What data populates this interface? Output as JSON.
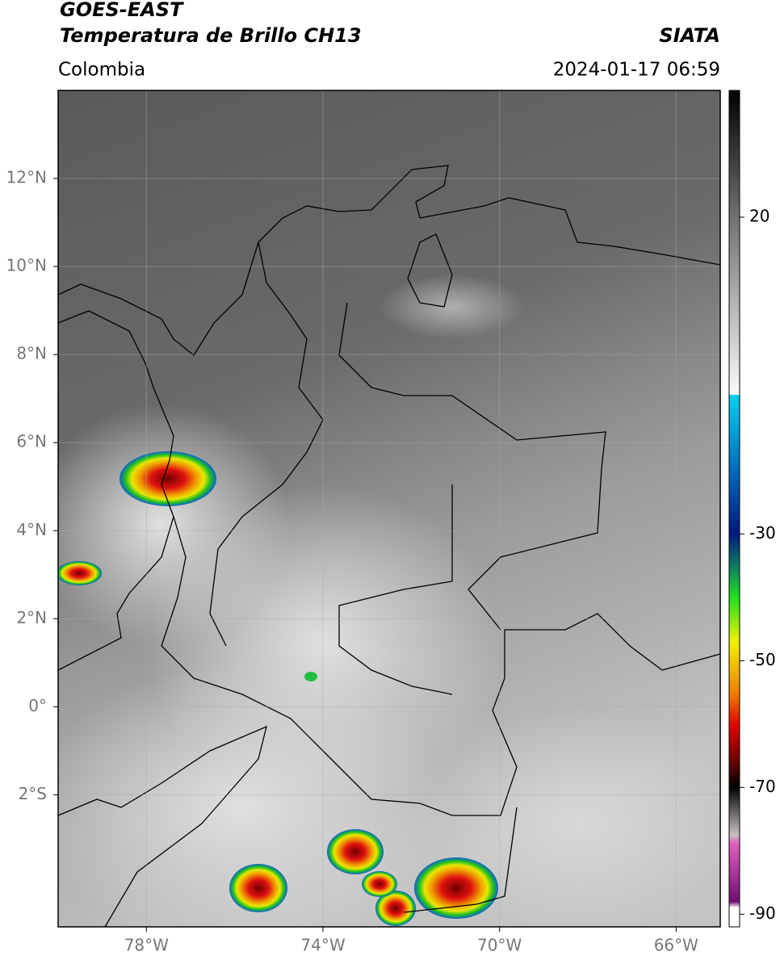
{
  "header": {
    "title": "GOES-EAST",
    "subtitle": "Temperatura de Brillo CH13",
    "source": "SIATA",
    "region": "Colombia",
    "datetime": "2024-01-17 06:59"
  },
  "map": {
    "type": "map",
    "xlim": [
      -80,
      -65
    ],
    "ylim": [
      -5,
      14
    ],
    "xticks": [
      {
        "value": -78,
        "label": "78°W"
      },
      {
        "value": -74,
        "label": "74°W"
      },
      {
        "value": -70,
        "label": "70°W"
      },
      {
        "value": -66,
        "label": "66°W"
      }
    ],
    "yticks": [
      {
        "value": 12,
        "label": "12°N"
      },
      {
        "value": 10,
        "label": "10°N"
      },
      {
        "value": 8,
        "label": "8°N"
      },
      {
        "value": 6,
        "label": "6°N"
      },
      {
        "value": 4,
        "label": "4°N"
      },
      {
        "value": 2,
        "label": "2°N"
      },
      {
        "value": 0,
        "label": "0°"
      },
      {
        "value": -2,
        "label": "2°S"
      }
    ],
    "grid": true
  },
  "colorbar": {
    "lim": [
      40,
      -92
    ],
    "ticks": [
      20,
      -30,
      -50,
      -70,
      -90
    ]
  }
}
